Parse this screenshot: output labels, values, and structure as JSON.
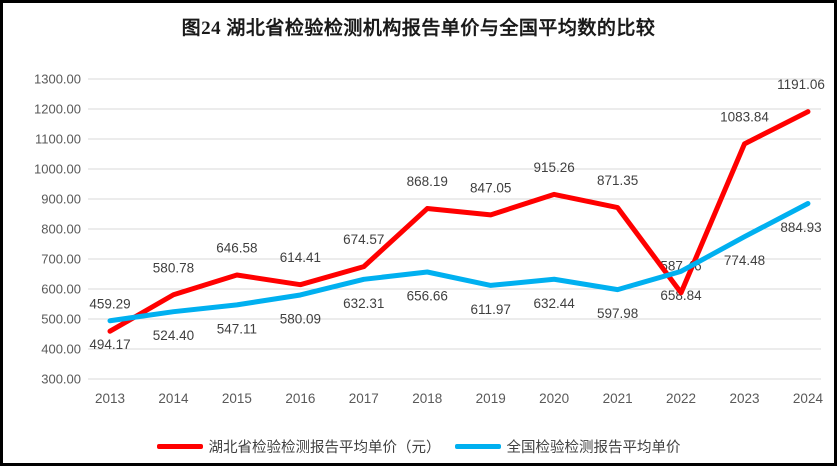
{
  "figure": {
    "title": "图24 湖北省检验检测机构报告单价与全国平均数的比较"
  },
  "chart_data": {
    "type": "line",
    "title": "图24 湖北省检验检测机构报告单价与全国平均数的比较",
    "categories": [
      "2013",
      "2014",
      "2015",
      "2016",
      "2017",
      "2018",
      "2019",
      "2020",
      "2021",
      "2022",
      "2023",
      "2024"
    ],
    "series": [
      {
        "name": "湖北省检验检测报告平均单价（元）",
        "color": "#FF0000",
        "label_position": "above",
        "values": [
          459.29,
          580.78,
          646.58,
          614.41,
          674.57,
          868.19,
          847.05,
          915.26,
          871.35,
          587.46,
          1083.84,
          1191.06
        ]
      },
      {
        "name": "全国检验检测报告平均单价",
        "color": "#00B0F0",
        "label_position": "below",
        "values": [
          494.17,
          524.4,
          547.11,
          580.09,
          632.31,
          656.66,
          611.97,
          632.44,
          597.98,
          658.84,
          774.48,
          884.93
        ]
      }
    ],
    "xlabel": "",
    "ylabel": "",
    "ylim": [
      300,
      1300
    ],
    "ytick_step": 100,
    "ytick_labels": [
      "300.00",
      "400.00",
      "500.00",
      "600.00",
      "700.00",
      "800.00",
      "900.00",
      "1000.00",
      "1100.00",
      "1200.00",
      "1300.00"
    ],
    "grid": true,
    "gridline_color": "#D9D9D9",
    "axis_text_color": "#595959",
    "data_label_color": "#404040",
    "legend_position": "bottom",
    "value_decimals": 2
  }
}
